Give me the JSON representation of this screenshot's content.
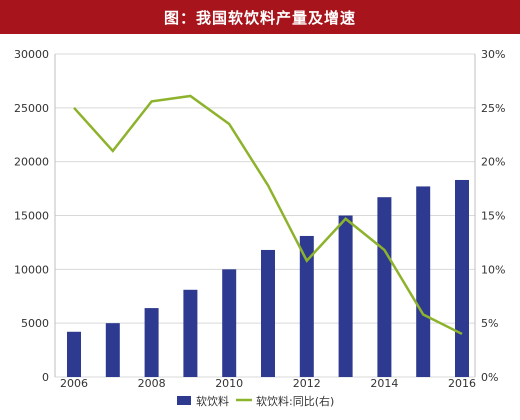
{
  "chart_data": {
    "type": "bar",
    "title": "图：我国软饮料产量及增速",
    "categories": [
      "2006",
      "2007",
      "2008",
      "2009",
      "2010",
      "2011",
      "2012",
      "2013",
      "2014",
      "2015",
      "2016"
    ],
    "x_tick_labels": [
      "2006",
      "2008",
      "2010",
      "2012",
      "2014",
      "2016"
    ],
    "series": [
      {
        "name": "软饮料",
        "type": "bar",
        "axis": "left",
        "values": [
          4200,
          5000,
          6400,
          8100,
          10000,
          11800,
          13100,
          15000,
          16700,
          17700,
          18300
        ]
      },
      {
        "name": "软饮料:同比(右)",
        "type": "line",
        "axis": "right",
        "values": [
          0.25,
          0.21,
          0.256,
          0.261,
          0.235,
          0.178,
          0.108,
          0.147,
          0.118,
          0.058,
          0.04
        ]
      }
    ],
    "ylim_left": [
      0,
      30000
    ],
    "yticks_left": [
      "0",
      "5000",
      "10000",
      "15000",
      "20000",
      "25000",
      "30000"
    ],
    "ylim_right": [
      0,
      0.3
    ],
    "yticks_right": [
      "0%",
      "5%",
      "10%",
      "15%",
      "20%",
      "25%",
      "30%"
    ],
    "grid": true,
    "legend_position": "bottom",
    "colors": {
      "bar": "#2e3a8f",
      "line": "#8db32c",
      "title_bg": "#a8141c"
    }
  }
}
